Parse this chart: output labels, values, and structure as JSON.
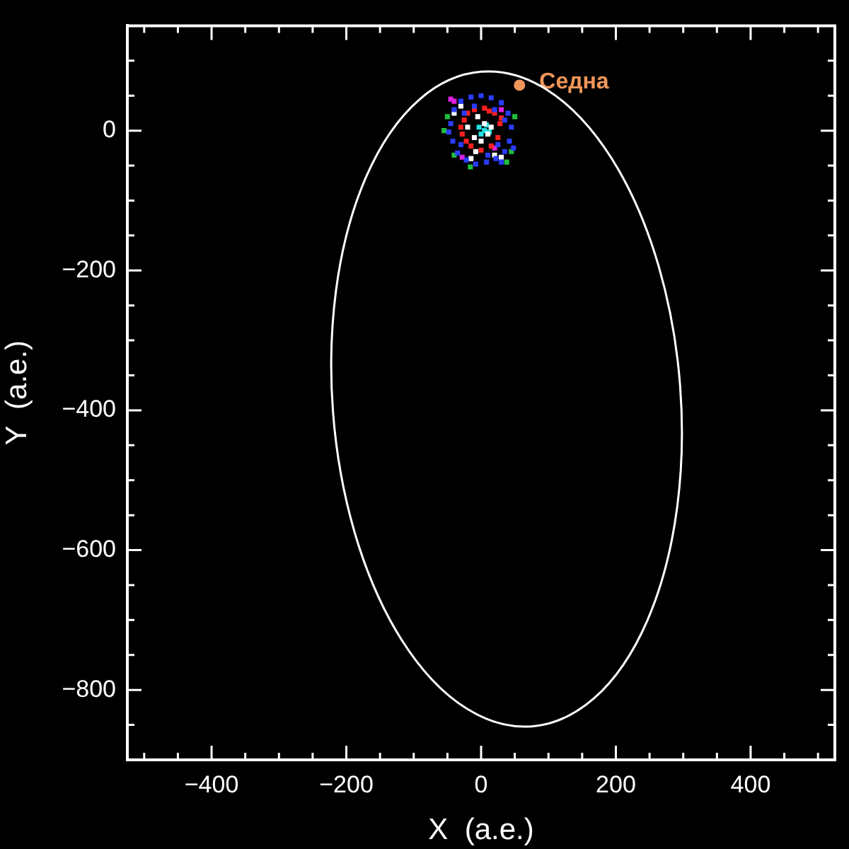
{
  "chart_data": {
    "type": "scatter",
    "xlabel": "X  (a.e.)",
    "ylabel": "Y  (a.e.)",
    "xlim": [
      -525,
      525
    ],
    "ylim": [
      -900,
      150
    ],
    "xticks": [
      {
        "value": -500,
        "label": null
      },
      {
        "value": -450,
        "label": null
      },
      -400,
      {
        "value": -350,
        "label": null
      },
      {
        "value": -300,
        "label": null
      },
      {
        "value": -250,
        "label": null
      },
      -200,
      {
        "value": -150,
        "label": null
      },
      {
        "value": -100,
        "label": null
      },
      {
        "value": -50,
        "label": null
      },
      0,
      {
        "value": 50,
        "label": null
      },
      {
        "value": 100,
        "label": null
      },
      {
        "value": 150,
        "label": null
      },
      200,
      {
        "value": 250,
        "label": null
      },
      {
        "value": 300,
        "label": null
      },
      {
        "value": 350,
        "label": null
      },
      400,
      {
        "value": 450,
        "label": null
      },
      {
        "value": 500,
        "label": null
      }
    ],
    "yticks": [
      {
        "value": -850,
        "label": null
      },
      -800,
      {
        "value": -750,
        "label": null
      },
      {
        "value": -700,
        "label": null
      },
      {
        "value": -650,
        "label": null
      },
      -600,
      {
        "value": -550,
        "label": null
      },
      {
        "value": -500,
        "label": null
      },
      {
        "value": -450,
        "label": null
      },
      -400,
      {
        "value": -350,
        "label": null
      },
      {
        "value": -300,
        "label": null
      },
      {
        "value": -250,
        "label": null
      },
      -200,
      {
        "value": -150,
        "label": null
      },
      {
        "value": -100,
        "label": null
      },
      {
        "value": -50,
        "label": null
      },
      0,
      {
        "value": 50,
        "label": null
      },
      {
        "value": 100,
        "label": null
      }
    ],
    "series": [
      {
        "type": "scatter",
        "color": "#2a3cff",
        "marker": "square",
        "x": [
          -45,
          -40,
          -30,
          -15,
          0,
          15,
          30,
          40,
          45,
          42,
          35,
          22,
          8,
          -8,
          -22,
          -35,
          -42,
          -48,
          -25,
          25,
          35,
          -30,
          20,
          -10,
          10,
          48,
          30
        ],
        "values": [
          10,
          30,
          42,
          48,
          50,
          47,
          40,
          25,
          5,
          -15,
          -30,
          -40,
          -45,
          -48,
          -42,
          -32,
          -15,
          -2,
          25,
          -20,
          15,
          -20,
          30,
          35,
          -35,
          -25,
          -45
        ]
      },
      {
        "type": "scatter",
        "color": "#ff2020",
        "marker": "square",
        "x": [
          -25,
          -20,
          -10,
          5,
          20,
          28,
          25,
          15,
          0,
          -15,
          -28,
          -30,
          12,
          30,
          -22
        ],
        "values": [
          15,
          25,
          30,
          32,
          25,
          10,
          -10,
          -22,
          -28,
          -22,
          -5,
          5,
          28,
          18,
          -15
        ]
      },
      {
        "type": "scatter",
        "color": "#ffffff",
        "marker": "square",
        "x": [
          -30,
          -20,
          -10,
          5,
          10,
          -5,
          20,
          -15,
          30,
          -40,
          0,
          -8,
          15
        ],
        "values": [
          35,
          5,
          -10,
          10,
          -5,
          20,
          -35,
          -40,
          -38,
          25,
          -15,
          -30,
          5
        ]
      },
      {
        "type": "scatter",
        "color": "#20c040",
        "marker": "square",
        "x": [
          -55,
          -40,
          45,
          50,
          -16,
          -50,
          38
        ],
        "values": [
          0,
          -35,
          -30,
          20,
          -52,
          20,
          -45
        ]
      },
      {
        "type": "scatter",
        "color": "#20e0e0",
        "marker": "square",
        "x": [
          5,
          8,
          0,
          12,
          -3
        ],
        "values": [
          0,
          8,
          -5,
          -2,
          5
        ]
      },
      {
        "type": "scatter",
        "color": "#e020e0",
        "marker": "square",
        "x": [
          -45,
          -40,
          20,
          30,
          -28
        ],
        "values": [
          45,
          42,
          -25,
          30,
          -38
        ]
      },
      {
        "type": "scatter",
        "name": "Седна",
        "color": "#f0965a",
        "marker": "circle",
        "x": [
          57
        ],
        "values": [
          65
        ]
      }
    ]
  }
}
